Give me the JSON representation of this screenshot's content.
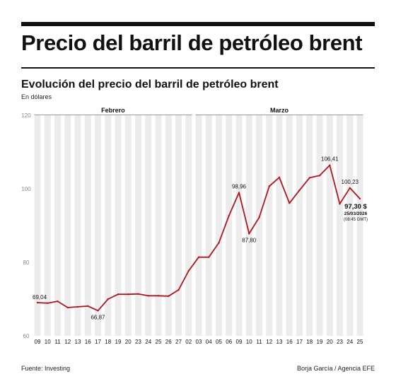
{
  "header": {
    "headline": "Precio del barril de petróleo brent",
    "subtitle": "Evolución del precio del barril de petróleo brent",
    "units": "En dólares"
  },
  "footer": {
    "source": "Fuente: Investing",
    "credit": "Borja García / Agencia EFE"
  },
  "colors": {
    "line": "#b0161f",
    "column": "#ececec",
    "text": "#111111",
    "axis_label": "#888888"
  },
  "chart_data": {
    "type": "line",
    "title": "Evolución del precio del barril de petróleo brent",
    "ylabel": "En dólares",
    "ylim": [
      60,
      120
    ],
    "yticks": [
      60,
      80,
      100,
      120
    ],
    "grid": "alternating vertical column bands",
    "month_groups": [
      {
        "label": "Febrero",
        "start_index": 0,
        "end_index": 15
      },
      {
        "label": "Marzo",
        "start_index": 16,
        "end_index": 32
      }
    ],
    "categories": [
      "09",
      "10",
      "11",
      "12",
      "13",
      "16",
      "17",
      "18",
      "19",
      "20",
      "23",
      "24",
      "25",
      "26",
      "27",
      "02",
      "03",
      "04",
      "05",
      "06",
      "09",
      "10",
      "11",
      "12",
      "13",
      "16",
      "17",
      "18",
      "19",
      "20",
      "23",
      "24",
      "25"
    ],
    "series": [
      {
        "name": "",
        "values": [
          69.04,
          68.9,
          69.4,
          67.7,
          67.9,
          68.1,
          66.87,
          70.0,
          71.3,
          71.3,
          71.4,
          70.9,
          70.9,
          70.8,
          72.5,
          77.7,
          81.4,
          81.4,
          85.3,
          92.7,
          98.96,
          87.8,
          92.2,
          100.7,
          103.1,
          96.1,
          99.6,
          103.0,
          103.6,
          106.41,
          95.9,
          100.23,
          97.3
        ]
      }
    ],
    "point_labels": [
      {
        "index": 0,
        "text": "69,04"
      },
      {
        "index": 6,
        "text": "66,87"
      },
      {
        "index": 20,
        "text": "98,96"
      },
      {
        "index": 21,
        "text": "87,80"
      },
      {
        "index": 29,
        "text": "106,41"
      },
      {
        "index": 31,
        "text": "100,23"
      }
    ],
    "last_value": {
      "value": "97,30 $",
      "date": "25/03/2026",
      "time": "(08:45 GMT)"
    }
  }
}
